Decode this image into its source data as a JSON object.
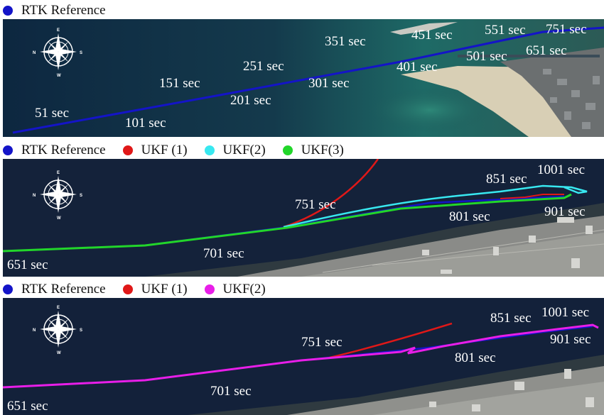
{
  "colors": {
    "rtk": "#1414c8",
    "ukf1": "#e01818",
    "ukf2_cyan": "#38e8f0",
    "ukf3": "#22d62a",
    "ukf2_magenta": "#e81ee8"
  },
  "panels": [
    {
      "legend": [
        {
          "label": "RTK Reference",
          "color": "#1414c8"
        }
      ],
      "time_labels": [
        "51 sec",
        "101 sec",
        "151 sec",
        "201 sec",
        "251 sec",
        "301 sec",
        "351 sec",
        "401 sec",
        "451 sec",
        "501 sec",
        "551 sec",
        "651 sec",
        "751 sec"
      ]
    },
    {
      "legend": [
        {
          "label": "RTK Reference",
          "color": "#1414c8"
        },
        {
          "label": "UKF (1)",
          "color": "#e01818"
        },
        {
          "label": "UKF(2)",
          "color": "#38e8f0"
        },
        {
          "label": "UKF(3)",
          "color": "#22d62a"
        }
      ],
      "time_labels": [
        "651 sec",
        "701 sec",
        "751 sec",
        "801 sec",
        "851 sec",
        "901 sec",
        "1001 sec"
      ]
    },
    {
      "legend": [
        {
          "label": "RTK Reference",
          "color": "#1414c8"
        },
        {
          "label": "UKF (1)",
          "color": "#e01818"
        },
        {
          "label": "UKF(2)",
          "color": "#e81ee8"
        }
      ],
      "time_labels": [
        "651 sec",
        "701 sec",
        "751 sec",
        "801 sec",
        "851 sec",
        "901 sec",
        "1001 sec"
      ]
    }
  ],
  "compass": {
    "n": "E",
    "s": "W",
    "w": "N",
    "e": "S",
    "icon": "compass-rose-icon"
  }
}
